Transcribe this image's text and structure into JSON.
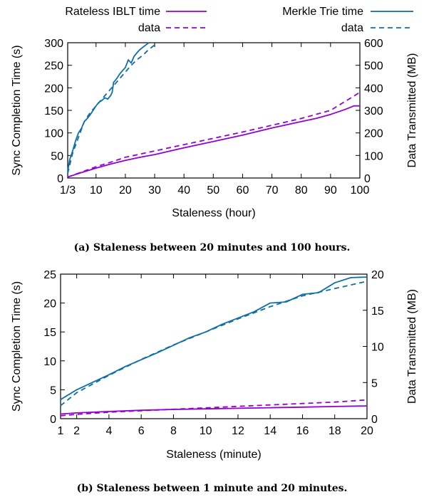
{
  "colors": {
    "rateless": "#9400d3",
    "merkle": "#0e6fa6",
    "axis": "#000000"
  },
  "chart_data": [
    {
      "type": "line",
      "caption": "(a) Staleness between 20 minutes and 100 hours.",
      "xlabel": "Staleness (hour)",
      "ylabel": "Sync Completion Time (s)",
      "y2label": "Data Transmitted (MB)",
      "xlim": [
        0.333,
        100
      ],
      "ylim": [
        0,
        300
      ],
      "y2lim": [
        0,
        600
      ],
      "xticks": [
        {
          "v": 0.333,
          "label": "1/3"
        },
        {
          "v": 10,
          "label": "10"
        },
        {
          "v": 20,
          "label": "20"
        },
        {
          "v": 30,
          "label": "30"
        },
        {
          "v": 40,
          "label": "40"
        },
        {
          "v": 50,
          "label": "50"
        },
        {
          "v": 60,
          "label": "60"
        },
        {
          "v": 70,
          "label": "70"
        },
        {
          "v": 80,
          "label": "80"
        },
        {
          "v": 90,
          "label": "90"
        },
        {
          "v": 100,
          "label": "100"
        }
      ],
      "yticks": [
        {
          "v": 0,
          "label": "0"
        },
        {
          "v": 50,
          "label": "50"
        },
        {
          "v": 100,
          "label": "100"
        },
        {
          "v": 150,
          "label": "150"
        },
        {
          "v": 200,
          "label": "200"
        },
        {
          "v": 250,
          "label": "250"
        },
        {
          "v": 300,
          "label": "300"
        }
      ],
      "y2ticks": [
        {
          "v": 0,
          "label": "0"
        },
        {
          "v": 100,
          "label": "100"
        },
        {
          "v": 200,
          "label": "200"
        },
        {
          "v": 300,
          "label": "300"
        },
        {
          "v": 400,
          "label": "400"
        },
        {
          "v": 500,
          "label": "500"
        },
        {
          "v": 600,
          "label": "600"
        }
      ],
      "legend": [
        {
          "label": "Rateless IBLT time",
          "series": 0
        },
        {
          "label": "data",
          "series": 1
        },
        {
          "label": "Merkle Trie time",
          "series": 2
        },
        {
          "label": "data",
          "series": 3
        }
      ],
      "series": [
        {
          "name": "Rateless IBLT time",
          "axis": "y",
          "color": "rateless",
          "dash": false,
          "x": [
            0.333,
            5,
            10,
            15,
            20,
            25,
            30,
            40,
            50,
            60,
            70,
            80,
            85,
            90,
            95,
            98,
            100
          ],
          "y": [
            2,
            12,
            22,
            31,
            39,
            46,
            52,
            67,
            81,
            95,
            111,
            125,
            132,
            141,
            152,
            160,
            160
          ]
        },
        {
          "name": "data",
          "axis": "y2",
          "color": "rateless",
          "dash": true,
          "x": [
            0.333,
            5,
            10,
            15,
            20,
            30,
            40,
            50,
            60,
            70,
            80,
            90,
            100
          ],
          "y": [
            4,
            26,
            50,
            70,
            92,
            120,
            148,
            176,
            204,
            234,
            264,
            300,
            380
          ]
        },
        {
          "name": "Merkle Trie time",
          "axis": "y",
          "color": "merkle",
          "dash": false,
          "x": [
            0.333,
            1,
            2,
            3,
            4,
            5,
            6,
            7,
            8,
            9,
            10,
            11,
            12,
            13,
            14,
            15,
            15.5,
            16,
            17,
            18,
            19,
            20,
            21,
            22,
            23,
            24,
            25,
            26,
            27,
            28
          ],
          "y": [
            15,
            40,
            60,
            82,
            100,
            110,
            125,
            132,
            140,
            150,
            160,
            168,
            172,
            178,
            175,
            183,
            190,
            212,
            220,
            230,
            238,
            245,
            262,
            255,
            270,
            278,
            285,
            290,
            295,
            300
          ]
        },
        {
          "name": "data",
          "axis": "y2",
          "color": "merkle",
          "dash": true,
          "x": [
            0.333,
            2,
            4,
            6,
            8,
            10,
            12,
            14,
            16,
            18,
            20,
            22,
            24,
            26,
            28,
            30
          ],
          "y": [
            20,
            110,
            180,
            250,
            290,
            320,
            350,
            380,
            410,
            440,
            470,
            500,
            525,
            545,
            570,
            590
          ]
        }
      ]
    },
    {
      "type": "line",
      "caption": "(b) Staleness between 1 minute and 20 minutes.",
      "xlabel": "Staleness (minute)",
      "ylabel": "Sync Completion Time (s)",
      "y2label": "Data Transmitted (MB)",
      "xlim": [
        1,
        20
      ],
      "ylim": [
        0,
        25
      ],
      "y2lim": [
        0,
        20
      ],
      "xticks": [
        {
          "v": 1,
          "label": "1"
        },
        {
          "v": 2,
          "label": "2"
        },
        {
          "v": 4,
          "label": "4"
        },
        {
          "v": 6,
          "label": "6"
        },
        {
          "v": 8,
          "label": "8"
        },
        {
          "v": 10,
          "label": "10"
        },
        {
          "v": 12,
          "label": "12"
        },
        {
          "v": 14,
          "label": "14"
        },
        {
          "v": 16,
          "label": "16"
        },
        {
          "v": 18,
          "label": "18"
        },
        {
          "v": 20,
          "label": "20"
        }
      ],
      "yticks": [
        {
          "v": 0,
          "label": "0"
        },
        {
          "v": 5,
          "label": "5"
        },
        {
          "v": 10,
          "label": "10"
        },
        {
          "v": 15,
          "label": "15"
        },
        {
          "v": 20,
          "label": "20"
        },
        {
          "v": 25,
          "label": "25"
        }
      ],
      "y2ticks": [
        {
          "v": 0,
          "label": "0"
        },
        {
          "v": 5,
          "label": "5"
        },
        {
          "v": 10,
          "label": "10"
        },
        {
          "v": 15,
          "label": "15"
        },
        {
          "v": 20,
          "label": "20"
        }
      ],
      "series": [
        {
          "name": "Rateless IBLT time",
          "axis": "y",
          "color": "rateless",
          "dash": false,
          "x": [
            1,
            2,
            4,
            6,
            8,
            10,
            12,
            14,
            16,
            18,
            20
          ],
          "y": [
            0.8,
            1.0,
            1.25,
            1.45,
            1.6,
            1.7,
            1.8,
            1.9,
            2.0,
            2.1,
            2.2
          ]
        },
        {
          "name": "data",
          "axis": "y2",
          "color": "rateless",
          "dash": true,
          "x": [
            1,
            2,
            4,
            6,
            8,
            10,
            12,
            14,
            16,
            18,
            20
          ],
          "y": [
            0.4,
            0.6,
            0.9,
            1.1,
            1.3,
            1.5,
            1.7,
            1.9,
            2.1,
            2.3,
            2.6
          ]
        },
        {
          "name": "Merkle Trie time",
          "axis": "y",
          "color": "merkle",
          "dash": false,
          "x": [
            1,
            2,
            3,
            4,
            5,
            6,
            7,
            8,
            9,
            10,
            11,
            12,
            13,
            14,
            15,
            16,
            17,
            18,
            19,
            20
          ],
          "y": [
            3.3,
            5.0,
            6.3,
            7.6,
            9.0,
            10.2,
            11.4,
            12.7,
            14.0,
            15.0,
            16.3,
            17.4,
            18.5,
            20.0,
            20.2,
            21.5,
            21.8,
            23.5,
            24.4,
            24.5
          ]
        },
        {
          "name": "data",
          "axis": "y2",
          "color": "merkle",
          "dash": true,
          "x": [
            1,
            2,
            4,
            6,
            8,
            10,
            12,
            14,
            16,
            18,
            20
          ],
          "y": [
            1.8,
            3.6,
            6.0,
            8.2,
            10.2,
            12.0,
            13.8,
            15.5,
            17.0,
            18.0,
            19.0
          ]
        }
      ]
    }
  ]
}
